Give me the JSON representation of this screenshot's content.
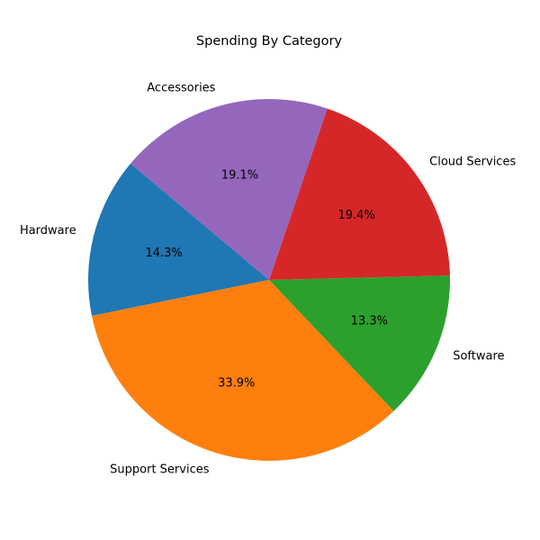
{
  "chart_data": {
    "type": "pie",
    "title": "Spending By Category",
    "categories": [
      "Hardware",
      "Support Services",
      "Software",
      "Cloud Services",
      "Accessories"
    ],
    "values": [
      14.3,
      33.9,
      13.3,
      19.4,
      19.1
    ],
    "percent_labels": [
      "14.3%",
      "33.9%",
      "13.3%",
      "19.4%",
      "19.1%"
    ],
    "colors": [
      "#1f77b4",
      "#ff7f0e",
      "#2ca02c",
      "#d62728",
      "#9467bd"
    ],
    "start_angle_deg": 140,
    "direction": "counterclockwise",
    "legend": "none"
  }
}
